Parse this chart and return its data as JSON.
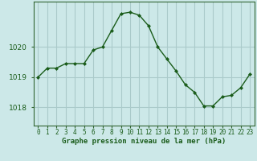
{
  "x": [
    0,
    1,
    2,
    3,
    4,
    5,
    6,
    7,
    8,
    9,
    10,
    11,
    12,
    13,
    14,
    15,
    16,
    17,
    18,
    19,
    20,
    21,
    22,
    23
  ],
  "y": [
    1019.0,
    1019.3,
    1019.3,
    1019.45,
    1019.45,
    1019.45,
    1019.9,
    1020.0,
    1020.55,
    1021.1,
    1021.15,
    1021.05,
    1020.7,
    1020.0,
    1019.6,
    1019.2,
    1018.75,
    1018.5,
    1018.05,
    1018.05,
    1018.35,
    1018.4,
    1018.65,
    1019.1
  ],
  "bg_color": "#cce8e8",
  "line_color": "#1a5c1a",
  "marker_color": "#1a5c1a",
  "grid_color": "#aacaca",
  "axis_color": "#336633",
  "label_color": "#1a5c1a",
  "xlabel": "Graphe pression niveau de la mer (hPa)",
  "yticks": [
    1018,
    1019,
    1020
  ],
  "ylim": [
    1017.4,
    1021.5
  ],
  "xlim": [
    -0.5,
    23.5
  ],
  "xticks": [
    0,
    1,
    2,
    3,
    4,
    5,
    6,
    7,
    8,
    9,
    10,
    11,
    12,
    13,
    14,
    15,
    16,
    17,
    18,
    19,
    20,
    21,
    22,
    23
  ],
  "xlabel_fontsize": 6.5,
  "ytick_fontsize": 6.5,
  "xtick_fontsize": 5.5
}
